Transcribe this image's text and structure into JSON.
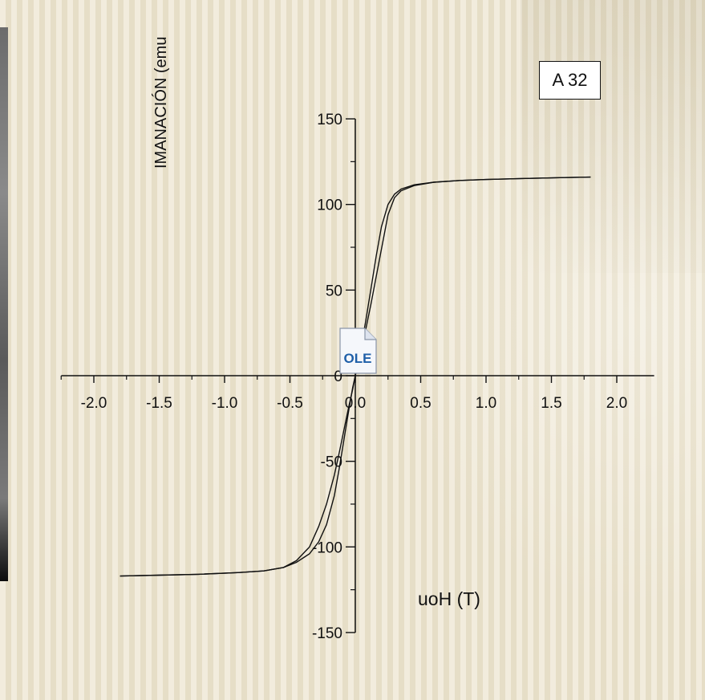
{
  "chart_data": {
    "type": "line",
    "xlabel": "uoH (T)",
    "ylabel": "IMANACIÓN (emu",
    "annotation": "A 32",
    "xlim": [
      -2.2,
      2.2
    ],
    "ylim": [
      -150,
      150
    ],
    "x_ticks": [
      "-2.0",
      "-1.5",
      "-1.0",
      "-0.5",
      "0.0",
      "0.5",
      "1.0",
      "1.5",
      "2.0"
    ],
    "y_ticks": [
      "150",
      "100",
      "50",
      "0",
      "-50",
      "-100",
      "-150"
    ],
    "grid": false,
    "series": [
      {
        "x": [
          -1.8,
          -1.5,
          -1.2,
          -0.9,
          -0.7,
          -0.55,
          -0.45,
          -0.35,
          -0.28,
          -0.22,
          -0.16,
          -0.12,
          -0.08,
          -0.05,
          -0.02,
          0.0,
          0.02,
          0.05,
          0.08,
          0.12,
          0.16,
          0.2,
          0.25,
          0.3,
          0.35,
          0.45,
          0.6,
          0.8,
          1.0,
          1.3,
          1.6,
          1.8
        ],
        "y": [
          -117,
          -116.5,
          -116,
          -115,
          -114,
          -112,
          -108,
          -100,
          -88,
          -75,
          -58,
          -44,
          -29,
          -18,
          -8,
          0,
          8,
          19,
          32,
          51,
          70,
          87,
          100,
          106,
          109,
          111.5,
          113,
          114,
          114.6,
          115.2,
          115.7,
          116
        ]
      },
      {
        "x": [
          -1.8,
          -1.5,
          -1.2,
          -0.9,
          -0.7,
          -0.55,
          -0.45,
          -0.35,
          -0.28,
          -0.22,
          -0.16,
          -0.12,
          -0.08,
          -0.05,
          -0.02,
          0.0,
          0.02,
          0.05,
          0.08,
          0.12,
          0.16,
          0.2,
          0.25,
          0.3,
          0.35,
          0.45,
          0.6,
          0.8,
          1.0,
          1.3,
          1.6,
          1.8
        ],
        "y": [
          -117,
          -116.5,
          -116,
          -115,
          -114,
          -112,
          -109,
          -104,
          -97,
          -87,
          -70,
          -53,
          -34,
          -20,
          -7,
          0,
          7,
          17,
          27,
          42,
          58,
          74,
          94,
          104,
          108,
          111,
          113,
          114,
          114.6,
          115.2,
          115.7,
          116
        ]
      }
    ]
  },
  "ole_icon": {
    "label": "OLE",
    "color": "#1f5fa8"
  }
}
